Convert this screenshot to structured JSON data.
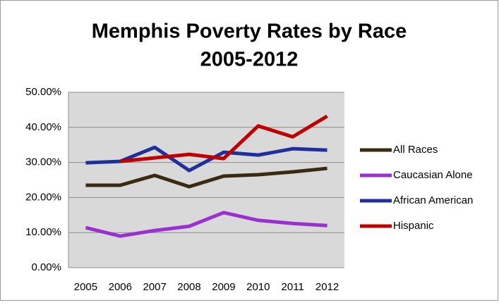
{
  "chart_data": {
    "type": "line",
    "title": [
      "Memphis Poverty Rates by Race",
      "2005-2012"
    ],
    "categories": [
      "2005",
      "2006",
      "2007",
      "2008",
      "2009",
      "2010",
      "2011",
      "2012"
    ],
    "series": [
      {
        "name": "All Races",
        "color": "#3b2a12",
        "values": [
          23.5,
          23.5,
          26.3,
          23.1,
          26.1,
          26.5,
          27.3,
          28.3
        ]
      },
      {
        "name": "Caucasian Alone",
        "color": "#9b30d0",
        "values": [
          11.4,
          9.0,
          10.6,
          11.8,
          15.7,
          13.5,
          12.6,
          12.0
        ]
      },
      {
        "name": "African American",
        "color": "#1f2f9c",
        "values": [
          29.9,
          30.3,
          34.3,
          27.7,
          32.9,
          32.1,
          33.9,
          33.5
        ]
      },
      {
        "name": "Hispanic",
        "color": "#c00000",
        "values": [
          null,
          30.3,
          31.3,
          32.3,
          31.1,
          40.4,
          37.3,
          43.2
        ]
      }
    ],
    "ylim": [
      0,
      50
    ],
    "yticks": [
      {
        "value": 0,
        "label": "0.00%"
      },
      {
        "value": 10,
        "label": "10.00%"
      },
      {
        "value": 20,
        "label": "20.00%"
      },
      {
        "value": 30,
        "label": "30.00%"
      },
      {
        "value": 40,
        "label": "40.00%"
      },
      {
        "value": 50,
        "label": "50.00%"
      }
    ],
    "grid": true,
    "legend": "right"
  }
}
